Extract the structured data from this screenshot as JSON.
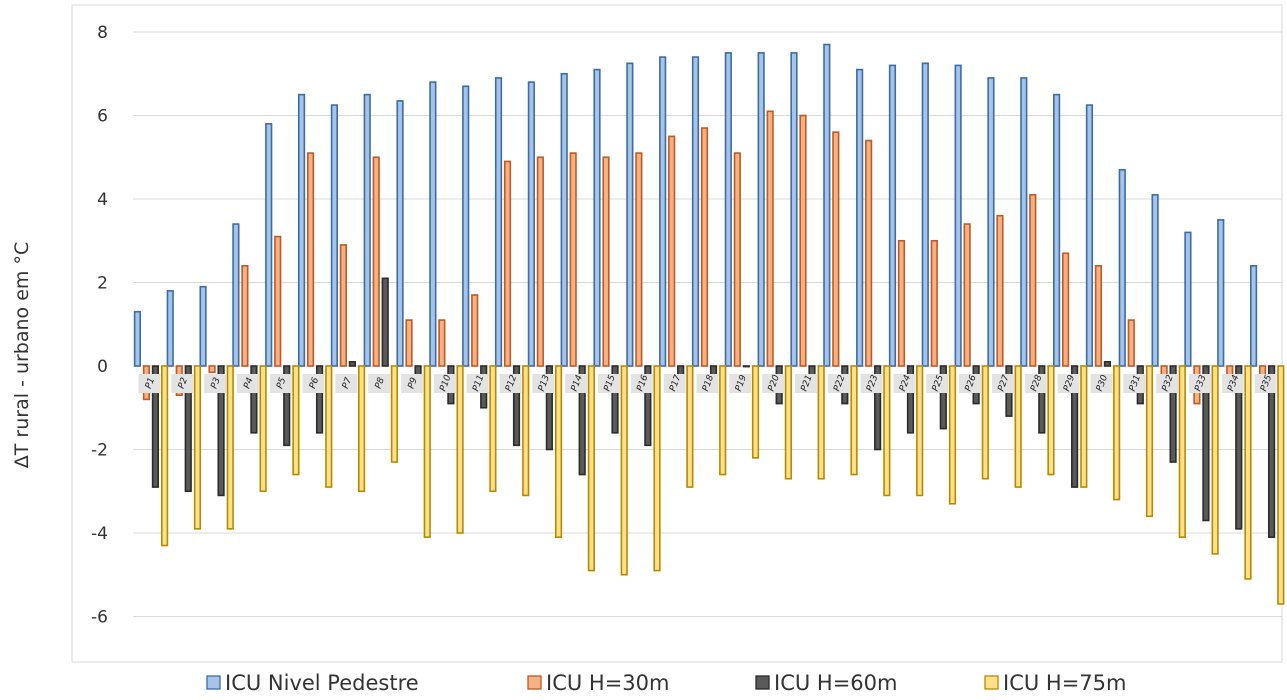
{
  "chart_data": {
    "type": "bar",
    "title": "",
    "xlabel": "",
    "ylabel": "ΔT rural - urbano em °C",
    "ylim": [
      -7,
      8
    ],
    "yticks": [
      -6,
      -4,
      -2,
      0,
      2,
      4,
      6,
      8
    ],
    "grid": true,
    "legend_position": "bottom",
    "categories": [
      "P1",
      "P2",
      "P3",
      "P4",
      "P5",
      "P6",
      "P7",
      "P8",
      "P9",
      "P10",
      "P11",
      "P12",
      "P13",
      "P14",
      "P15",
      "P16",
      "P17",
      "P18",
      "P19",
      "P20",
      "P21",
      "P22",
      "P23",
      "P24",
      "P25",
      "P26",
      "P27",
      "P28",
      "P29",
      "P30",
      "P31",
      "P32",
      "P33",
      "P34",
      "P35"
    ],
    "series": [
      {
        "name": "ICU Nivel Pedestre",
        "fill": "#a7c3e6",
        "stroke": "#3a6da8",
        "values": [
          1.3,
          1.8,
          1.9,
          3.4,
          5.8,
          6.5,
          6.25,
          6.5,
          6.35,
          6.8,
          6.7,
          6.9,
          6.8,
          7.0,
          7.1,
          7.25,
          7.4,
          7.4,
          7.5,
          7.5,
          7.5,
          7.7,
          7.1,
          7.2,
          7.25,
          7.2,
          6.9,
          6.9,
          6.5,
          6.25,
          4.7,
          4.1,
          3.2,
          3.5,
          2.4
        ]
      },
      {
        "name": "ICU H=30m",
        "fill": "#f4b183",
        "stroke": "#c05a23",
        "values": [
          -0.8,
          -0.7,
          -0.15,
          2.4,
          3.1,
          5.1,
          2.9,
          5.0,
          1.1,
          1.1,
          1.7,
          4.9,
          5.0,
          5.1,
          5.0,
          5.1,
          5.5,
          5.7,
          5.1,
          6.1,
          6.0,
          5.6,
          5.4,
          3.0,
          3.0,
          3.4,
          3.6,
          4.1,
          2.7,
          2.4,
          1.1,
          -0.3,
          -0.9,
          -0.3,
          -0.3
        ]
      },
      {
        "name": "ICU H=60m",
        "fill": "#5a5a5a",
        "stroke": "#2b2b2b",
        "values": [
          -2.9,
          -3.0,
          -3.1,
          -1.6,
          -1.9,
          -1.6,
          0.1,
          2.1,
          -0.3,
          -0.9,
          -1.0,
          -1.9,
          -2.0,
          -2.6,
          -1.6,
          -1.9,
          -0.3,
          -0.3,
          0.0,
          -0.9,
          -0.3,
          -0.9,
          -2.0,
          -1.6,
          -1.5,
          -0.9,
          -1.2,
          -1.6,
          -2.9,
          0.1,
          -0.9,
          -2.3,
          -3.7,
          -3.9,
          -4.1
        ]
      },
      {
        "name": "ICU H=75m",
        "fill": "#ffe08a",
        "stroke": "#b58a00",
        "values": [
          -4.3,
          -3.9,
          -3.9,
          -3.0,
          -2.6,
          -2.9,
          -3.0,
          -2.3,
          -4.1,
          -4.0,
          -3.0,
          -3.1,
          -4.1,
          -4.9,
          -5.0,
          -4.9,
          -2.9,
          -2.6,
          -2.2,
          -2.7,
          -2.7,
          -2.6,
          -3.1,
          -3.1,
          -3.3,
          -2.7,
          -2.9,
          -2.6,
          -2.9,
          -3.2,
          -3.6,
          -4.1,
          -4.5,
          -5.1,
          -5.7
        ]
      }
    ]
  }
}
